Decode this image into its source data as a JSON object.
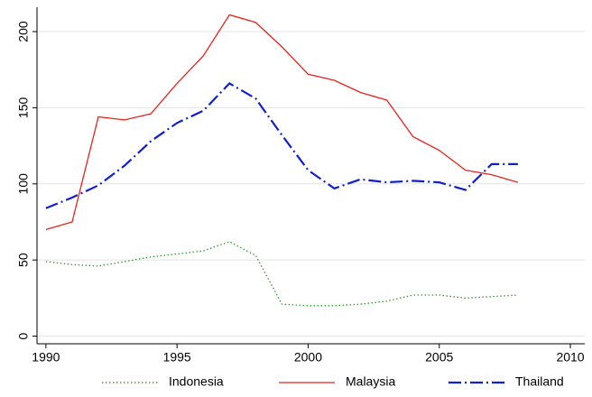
{
  "chart_data": {
    "type": "line",
    "x": [
      1990,
      1991,
      1992,
      1993,
      1994,
      1995,
      1996,
      1997,
      1998,
      1999,
      2000,
      2001,
      2002,
      2003,
      2004,
      2005,
      2006,
      2007,
      2008
    ],
    "series": [
      {
        "name": "Indonesia",
        "color": "#2e9b2e",
        "dash": "dotted",
        "values": [
          49,
          47,
          46,
          49,
          52,
          54,
          56,
          62,
          53,
          21,
          20,
          20,
          21,
          23,
          27,
          27,
          25,
          26,
          27
        ]
      },
      {
        "name": "Malaysia",
        "color": "#e8231c",
        "dash": "solid",
        "values": [
          70,
          75,
          144,
          142,
          146,
          166,
          184,
          211,
          206,
          190,
          172,
          168,
          160,
          155,
          131,
          122,
          109,
          106,
          101
        ]
      },
      {
        "name": "Thailand",
        "color": "#1020d0",
        "dash": "dashdot",
        "values": [
          84,
          91,
          99,
          112,
          128,
          140,
          148,
          166,
          156,
          132,
          109,
          97,
          103,
          101,
          102,
          101,
          96,
          113,
          113
        ]
      }
    ],
    "xlim": [
      1989.66,
      2010.55
    ],
    "xticks": [
      1990,
      1995,
      2000,
      2005,
      2010
    ],
    "ylim": [
      -5,
      216
    ],
    "yticks": [
      0,
      50,
      100,
      150,
      200
    ],
    "grid": true,
    "legend": "bottom"
  }
}
